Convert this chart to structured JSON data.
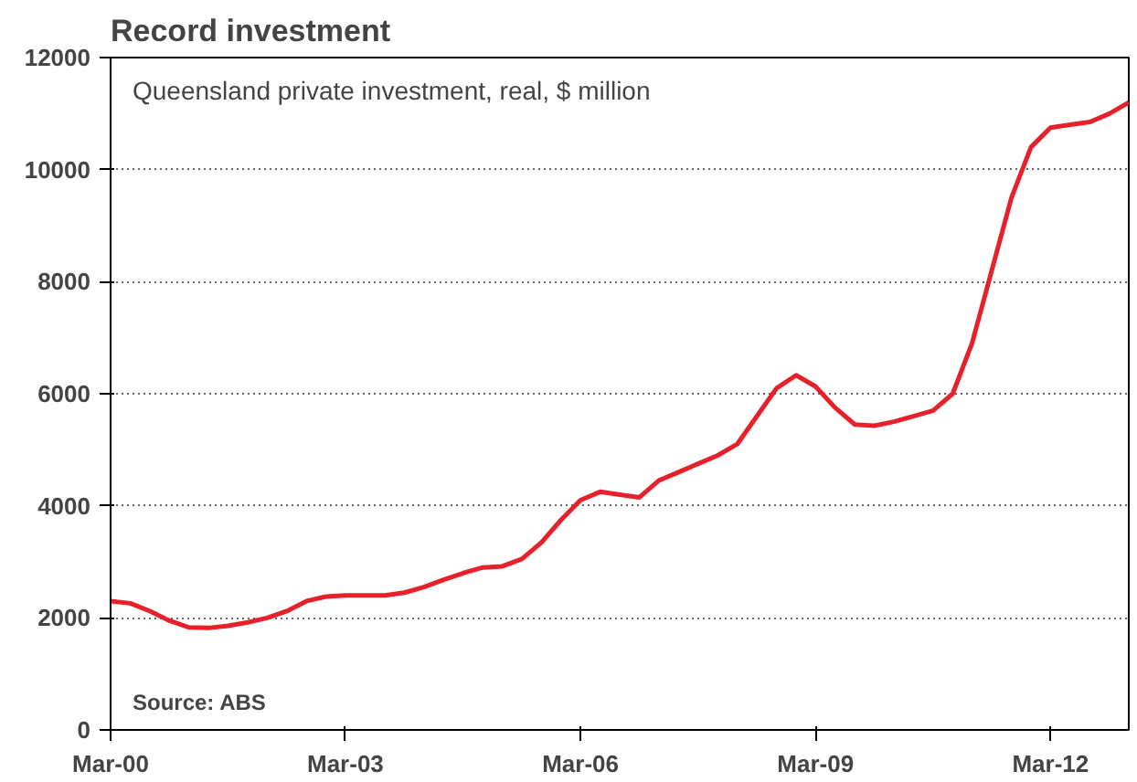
{
  "chart_data": {
    "type": "line",
    "title": "Record investment",
    "annotations": [
      "Queensland private investment, real, $ million",
      "Source: ABS"
    ],
    "x": [
      "2000-03",
      "2000-06",
      "2000-09",
      "2000-12",
      "2001-03",
      "2001-06",
      "2001-09",
      "2001-12",
      "2002-03",
      "2002-06",
      "2002-09",
      "2002-12",
      "2003-03",
      "2003-06",
      "2003-09",
      "2003-12",
      "2004-03",
      "2004-06",
      "2004-09",
      "2004-12",
      "2005-03",
      "2005-06",
      "2005-09",
      "2005-12",
      "2006-03",
      "2006-06",
      "2006-09",
      "2006-12",
      "2007-03",
      "2007-06",
      "2007-09",
      "2007-12",
      "2008-03",
      "2008-06",
      "2008-09",
      "2008-12",
      "2009-03",
      "2009-06",
      "2009-09",
      "2009-12",
      "2010-03",
      "2010-06",
      "2010-09",
      "2010-12",
      "2011-03",
      "2011-06",
      "2011-09",
      "2011-12",
      "2012-03",
      "2012-06",
      "2012-09",
      "2012-12",
      "2013-03"
    ],
    "series": [
      {
        "color": "#e8202a",
        "values": [
          2300,
          2260,
          2120,
          1950,
          1830,
          1820,
          1860,
          1920,
          2000,
          2120,
          2300,
          2380,
          2400,
          2400,
          2400,
          2450,
          2550,
          2680,
          2800,
          2900,
          2920,
          3050,
          3350,
          3750,
          4100,
          4250,
          4200,
          4150,
          4450,
          4600,
          4750,
          4900,
          5100,
          5600,
          6100,
          6330,
          6130,
          5750,
          5450,
          5430,
          5500,
          5600,
          5700,
          6000,
          6900,
          8200,
          9500,
          10400,
          10750,
          10800,
          10850,
          11000,
          11200
        ]
      }
    ],
    "xlim": [
      "2000-03",
      "2013-03"
    ],
    "xticks": [
      {
        "value": "2000-03",
        "label": "Mar-00"
      },
      {
        "value": "2003-03",
        "label": "Mar-03"
      },
      {
        "value": "2006-03",
        "label": "Mar-06"
      },
      {
        "value": "2009-03",
        "label": "Mar-09"
      },
      {
        "value": "2012-03",
        "label": "Mar-12"
      }
    ],
    "ylim": [
      0,
      12000
    ],
    "yticks": [
      0,
      2000,
      4000,
      6000,
      8000,
      10000,
      12000
    ],
    "grid": "y",
    "marker": "none",
    "line_style": "solid"
  }
}
